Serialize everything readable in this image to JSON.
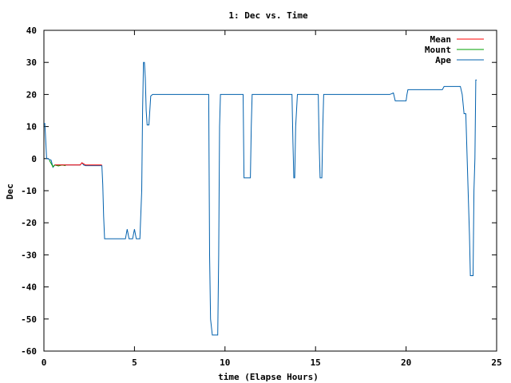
{
  "chart_data": {
    "type": "line",
    "title": "1: Dec vs. Time",
    "xlabel": "time (Elapse Hours)",
    "ylabel": "Dec",
    "xlim": [
      0,
      25
    ],
    "ylim": [
      -60,
      40
    ],
    "xticks": [
      0,
      5,
      10,
      15,
      20,
      25
    ],
    "yticks": [
      -60,
      -50,
      -40,
      -30,
      -20,
      -10,
      0,
      10,
      20,
      30,
      40
    ],
    "legend_position": "top-right",
    "grid": false,
    "series": [
      {
        "name": "Mean",
        "color": "#ff0000",
        "x": [
          0.6,
          1.0,
          1.5,
          2.0,
          2.1,
          2.3,
          2.5,
          3.0,
          3.2
        ],
        "y": [
          -2,
          -2,
          -2,
          -2,
          -1.3,
          -2,
          -2,
          -2,
          -2
        ]
      },
      {
        "name": "Mount",
        "color": "#00a000",
        "x": [
          0.3,
          0.5,
          0.6,
          0.8,
          1.0,
          1.2
        ],
        "y": [
          -0.5,
          -2.5,
          -2,
          -2.3,
          -2,
          -2.2
        ]
      },
      {
        "name": "Ape",
        "color": "#0060ad",
        "x": [
          0,
          0.05,
          0.08,
          0.15,
          0.2,
          0.4,
          0.5,
          0.6,
          1.0,
          2.0,
          2.1,
          2.2,
          2.3,
          3.2,
          3.25,
          3.3,
          3.35,
          4.5,
          4.6,
          4.7,
          4.9,
          5.0,
          5.1,
          5.2,
          5.3,
          5.4,
          5.45,
          5.5,
          5.55,
          5.6,
          5.65,
          5.7,
          5.8,
          5.9,
          6.0,
          9.1,
          9.15,
          9.2,
          9.3,
          9.35,
          9.4,
          9.6,
          9.65,
          9.7,
          9.75,
          11.0,
          11.05,
          11.1,
          11.4,
          11.45,
          11.5,
          11.6,
          13.7,
          13.75,
          13.8,
          13.85,
          13.9,
          14.0,
          14.1,
          15.15,
          15.2,
          15.25,
          15.35,
          15.4,
          15.45,
          15.5,
          19.1,
          19.3,
          19.4,
          20.0,
          20.05,
          20.1,
          22.0,
          22.1,
          22.9,
          23.0,
          23.1,
          23.2,
          23.3,
          23.5,
          23.55,
          23.6,
          23.7,
          23.75,
          23.8,
          23.85,
          23.9
        ],
        "y": [
          11,
          11,
          8,
          0,
          0,
          -0.5,
          -2.7,
          -2,
          -2,
          -2,
          -1.3,
          -2,
          -2.2,
          -2.2,
          -8,
          -18,
          -25,
          -25,
          -22,
          -25,
          -25,
          -22,
          -25,
          -25,
          -25,
          -10,
          15,
          30,
          30,
          25,
          15,
          10.5,
          10.5,
          19.5,
          20,
          20,
          -30,
          -50,
          -55,
          -55,
          -55,
          -55,
          -30,
          10,
          20,
          20,
          -6,
          -6,
          -6,
          10,
          20,
          20,
          20,
          5,
          -6,
          -6,
          10,
          20,
          20,
          20,
          5,
          -6,
          -6,
          10,
          20,
          20,
          20,
          20.5,
          18,
          18,
          20,
          21.5,
          21.5,
          22.5,
          22.5,
          22.5,
          20,
          14,
          14,
          -24,
          -36.5,
          -36.5,
          -36.5,
          -10,
          0,
          24.5,
          24.5
        ]
      }
    ]
  }
}
